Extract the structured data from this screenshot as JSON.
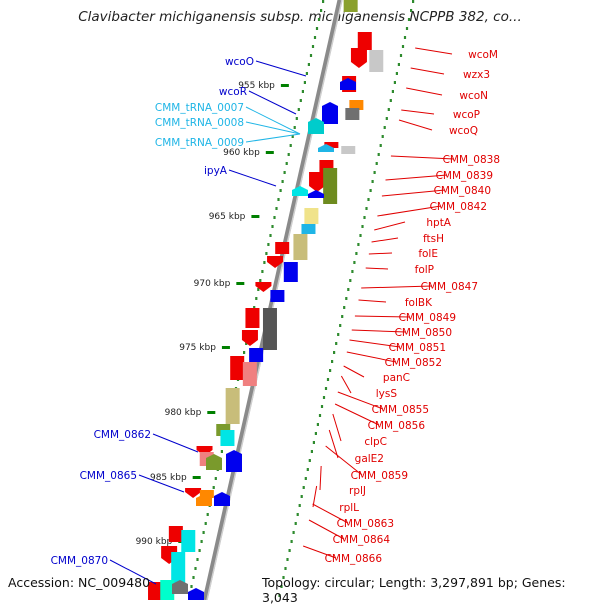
{
  "header": {
    "title": "Clavibacter michiganensis subsp. michiganensis NCPPB 382, co..."
  },
  "footer": {
    "accession": "Accession: NC_009480",
    "topology": "Topology: circular; Length: 3,297,891 bp; Genes: 3,043"
  },
  "colors": {
    "backbone": "#8a8a8a",
    "forward_gene": "#ee0000",
    "reverse_gene": "#0000ee",
    "right_label": "#e00000",
    "left_label": "#0000cc",
    "trna_label": "#1fb5e6",
    "tick": "#008000"
  },
  "scale": {
    "unit": "kbp",
    "ticks": [
      "955 kbp",
      "960 kbp",
      "965 kbp",
      "970 kbp",
      "975 kbp",
      "980 kbp",
      "985 kbp",
      "990 kbp"
    ]
  },
  "forward_genes": [
    "wcoM",
    "wzx3",
    "wcoN",
    "wcoP",
    "wcoQ",
    "CMM_0838",
    "CMM_0839",
    "CMM_0840",
    "CMM_0842",
    "hptA",
    "ftsH",
    "folE",
    "folP",
    "CMM_0847",
    "folBK",
    "CMM_0849",
    "CMM_0850",
    "CMM_0851",
    "CMM_0852",
    "panC",
    "lysS",
    "CMM_0855",
    "CMM_0856",
    "clpC",
    "galE2",
    "CMM_0859",
    "rplJ",
    "rplL",
    "CMM_0863",
    "CMM_0864",
    "CMM_0866"
  ],
  "reverse_genes": [
    "wcoO",
    "wcoR",
    "ipyA",
    "CMM_0862",
    "CMM_0865",
    "CMM_0870"
  ],
  "trna_genes": [
    "CMM_tRNA_0007",
    "CMM_tRNA_0008",
    "CMM_tRNA_0009"
  ]
}
